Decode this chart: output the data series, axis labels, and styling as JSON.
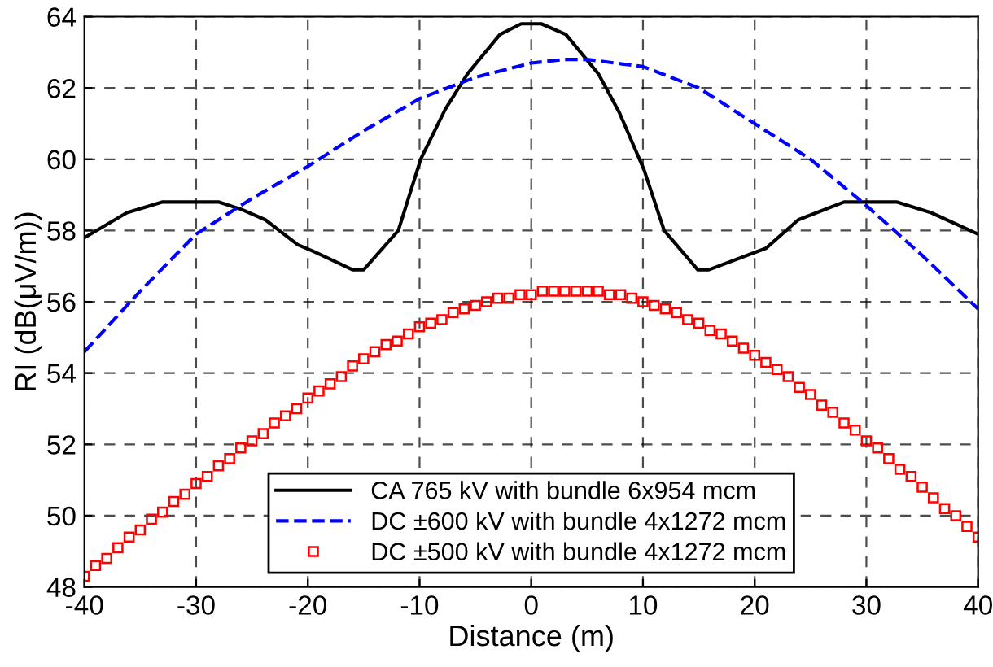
{
  "chart_data": {
    "type": "line",
    "xlabel": "Distance (m)",
    "ylabel": "RI (dB(μV/m))",
    "xlim": [
      -40,
      40
    ],
    "ylim": [
      48,
      64
    ],
    "xticks": [
      -40,
      -30,
      -20,
      -10,
      0,
      10,
      20,
      30,
      40
    ],
    "yticks": [
      48,
      50,
      52,
      54,
      56,
      58,
      60,
      62,
      64
    ],
    "grid": true,
    "legend": "bottom",
    "series": [
      {
        "name": "CA 765 kV with bundle 6x954 mcm",
        "color": "#000000",
        "line_style": "solid",
        "marker": "none",
        "x": [
          -40,
          -36.2,
          -33,
          -28,
          -26,
          -23.8,
          -20.9,
          -19.4,
          -16,
          -15,
          -11.9,
          -9.9,
          -7.7,
          -5.7,
          -2.8,
          -0.9,
          0.9,
          3.1,
          6,
          7.9,
          10.1,
          11.9,
          14.9,
          15.9,
          21,
          23.9,
          28,
          32.7,
          35.8,
          40
        ],
        "values": [
          57.8,
          58.5,
          58.8,
          58.8,
          58.6,
          58.3,
          57.6,
          57.4,
          56.9,
          56.9,
          58.0,
          60.0,
          61.4,
          62.4,
          63.5,
          63.8,
          63.8,
          63.5,
          62.4,
          61.3,
          59.7,
          58.0,
          56.9,
          56.9,
          57.5,
          58.3,
          58.8,
          58.8,
          58.5,
          57.9
        ]
      },
      {
        "name": "DC ±600 kV with bundle 4x1272 mcm",
        "color": "#0000ff",
        "line_style": "dashed",
        "marker": "none",
        "x": [
          -40,
          -35,
          -30,
          -25,
          -20,
          -15,
          -10,
          -5,
          0,
          3,
          5,
          10,
          15,
          20,
          25,
          30,
          35,
          40
        ],
        "values": [
          54.6,
          56.3,
          57.9,
          58.9,
          59.8,
          60.8,
          61.7,
          62.3,
          62.7,
          62.8,
          62.8,
          62.6,
          62.0,
          61.0,
          60.0,
          58.7,
          57.3,
          55.8
        ]
      },
      {
        "name": "DC ±500 kV with bundle 4x1272 mcm",
        "color": "#ff0000",
        "type": "scatter",
        "marker": "square",
        "x": [
          -40,
          -39,
          -38,
          -37,
          -36,
          -35,
          -34,
          -33,
          -32,
          -31,
          -30,
          -29,
          -28,
          -27,
          -26,
          -25,
          -24,
          -23,
          -22,
          -21,
          -20,
          -19,
          -18,
          -17,
          -16,
          -15,
          -14,
          -13,
          -12,
          -11,
          -10,
          -9,
          -8,
          -7,
          -6,
          -5,
          -4,
          -3,
          -2,
          -1,
          0,
          1,
          2,
          3,
          4,
          5,
          6,
          7,
          8,
          9,
          10,
          11,
          12,
          13,
          14,
          15,
          16,
          17,
          18,
          19,
          20,
          21,
          22,
          23,
          24,
          25,
          26,
          27,
          28,
          29,
          30,
          31,
          32,
          33,
          34,
          35,
          36,
          37,
          38,
          39,
          40
        ],
        "values": [
          48.3,
          48.6,
          48.8,
          49.1,
          49.4,
          49.6,
          49.9,
          50.1,
          50.4,
          50.6,
          50.9,
          51.1,
          51.4,
          51.6,
          51.9,
          52.1,
          52.3,
          52.6,
          52.8,
          53.0,
          53.3,
          53.5,
          53.7,
          53.9,
          54.2,
          54.4,
          54.6,
          54.8,
          54.9,
          55.1,
          55.3,
          55.4,
          55.5,
          55.7,
          55.8,
          55.9,
          56.0,
          56.1,
          56.1,
          56.2,
          56.2,
          56.3,
          56.3,
          56.3,
          56.3,
          56.3,
          56.3,
          56.2,
          56.2,
          56.1,
          56.0,
          55.9,
          55.8,
          55.7,
          55.5,
          55.4,
          55.2,
          55.1,
          54.9,
          54.7,
          54.5,
          54.3,
          54.1,
          53.9,
          53.6,
          53.4,
          53.1,
          52.9,
          52.6,
          52.4,
          52.1,
          51.9,
          51.6,
          51.3,
          51.1,
          50.8,
          50.5,
          50.2,
          50.0,
          49.7,
          49.4
        ]
      }
    ]
  }
}
